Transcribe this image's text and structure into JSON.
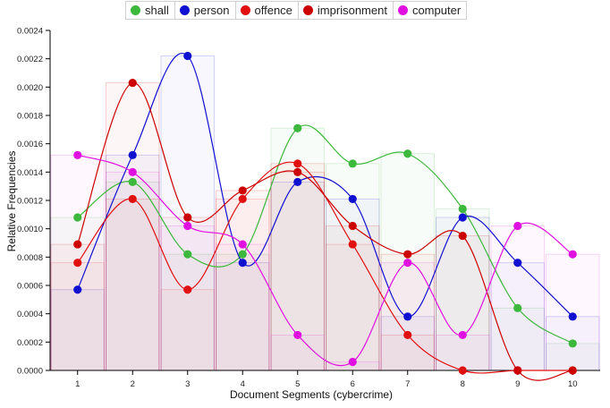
{
  "chart_data": {
    "type": "line",
    "title": "",
    "xlabel": "Document Segments (cybercrime)",
    "ylabel": "Relative Frequencies",
    "categories": [
      "1",
      "2",
      "3",
      "4",
      "5",
      "6",
      "7",
      "8",
      "9",
      "10"
    ],
    "ylim": [
      0,
      0.0024
    ],
    "yticks": [
      "0.0000",
      "0.0002",
      "0.0004",
      "0.0006",
      "0.0008",
      "0.0010",
      "0.0012",
      "0.0014",
      "0.0016",
      "0.0018",
      "0.0020",
      "0.0022",
      "0.0024"
    ],
    "yticks_values": [
      0,
      0.0002,
      0.0004,
      0.0006,
      0.0008,
      0.001,
      0.0012,
      0.0014,
      0.0016,
      0.0018,
      0.002,
      0.0022,
      0.0024
    ],
    "legend_position": "top",
    "series": [
      {
        "name": "shall",
        "color": "#3cb83c",
        "values": [
          0.00108,
          0.00133,
          0.00082,
          0.00082,
          0.00171,
          0.00146,
          0.00153,
          0.00114,
          0.00044,
          0.00019
        ]
      },
      {
        "name": "person",
        "color": "#1010d0",
        "values": [
          0.00057,
          0.00152,
          0.00222,
          0.00076,
          0.00133,
          0.00121,
          0.00038,
          0.00108,
          0.00076,
          0.00038
        ]
      },
      {
        "name": "offence",
        "color": "#e01010",
        "values": [
          0.00076,
          0.00121,
          0.00057,
          0.00121,
          0.00146,
          0.00089,
          0.00025,
          0.0,
          0.0,
          0.0
        ]
      },
      {
        "name": "imprisonment",
        "color": "#cc0000",
        "values": [
          0.00089,
          0.00203,
          0.00108,
          0.00127,
          0.0014,
          0.00102,
          0.00082,
          0.00095,
          0.0,
          0.0
        ]
      },
      {
        "name": "computer",
        "color": "#e010e0",
        "values": [
          0.00152,
          0.0014,
          0.00102,
          0.00089,
          0.00025,
          6e-05,
          0.00076,
          0.00025,
          0.00102,
          0.00082
        ]
      }
    ]
  }
}
